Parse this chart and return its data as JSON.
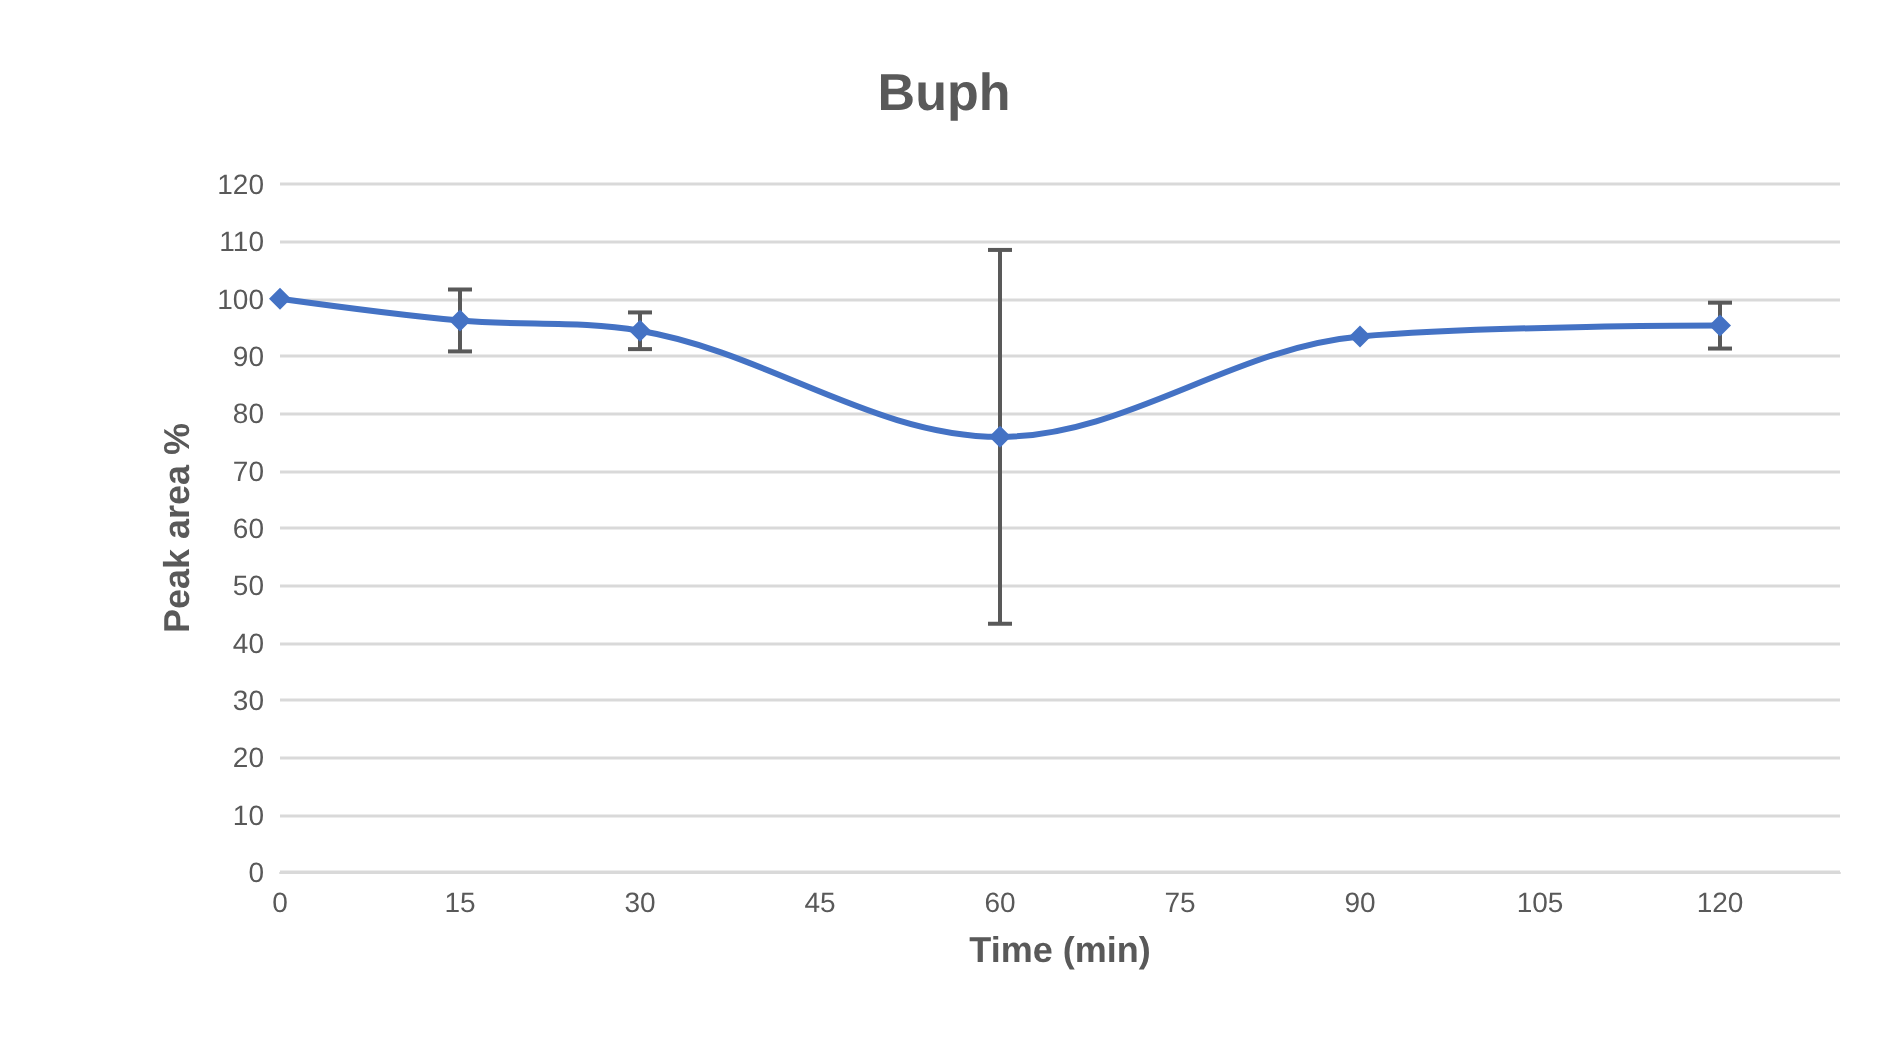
{
  "chart_data": {
    "type": "line",
    "title": "Buph",
    "xlabel": "Time (min)",
    "ylabel": "Peak area %",
    "x": [
      0,
      15,
      30,
      60,
      90,
      120
    ],
    "series": [
      {
        "color": "#4472c4",
        "values": [
          100,
          96.2,
          94.4,
          75.9,
          93.4,
          95.3
        ],
        "errors": [
          null,
          5.4,
          3.2,
          32.6,
          null,
          4
        ]
      }
    ],
    "xlim": [
      0,
      130
    ],
    "xticks": [
      0,
      15,
      30,
      45,
      60,
      75,
      90,
      105,
      120
    ],
    "ylim": [
      0,
      120
    ],
    "yticks": [
      0,
      10,
      20,
      30,
      40,
      50,
      60,
      70,
      80,
      90,
      100,
      110,
      120
    ],
    "grid": "y",
    "marker": "diamond",
    "line_style": "solid"
  }
}
